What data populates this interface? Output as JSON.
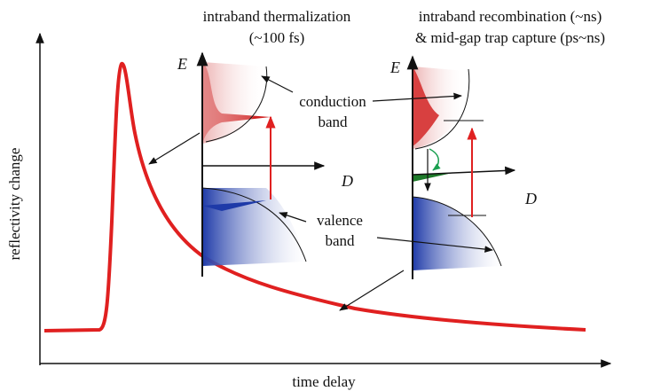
{
  "axes": {
    "y_label": "reflectivity change",
    "x_label": "time delay"
  },
  "insets": [
    {
      "title_lines": [
        "intraband thermalization",
        "(~100 fs)"
      ],
      "energy_label": "E",
      "dos_label": "D"
    },
    {
      "title_lines": [
        "intraband recombination (~ns)",
        "& mid-gap trap capture (ps~ns)"
      ],
      "energy_label": "E",
      "dos_label": "D"
    }
  ],
  "labels": {
    "conduction": [
      "conduction",
      "band"
    ],
    "valence": [
      "valence",
      "band"
    ]
  }
}
